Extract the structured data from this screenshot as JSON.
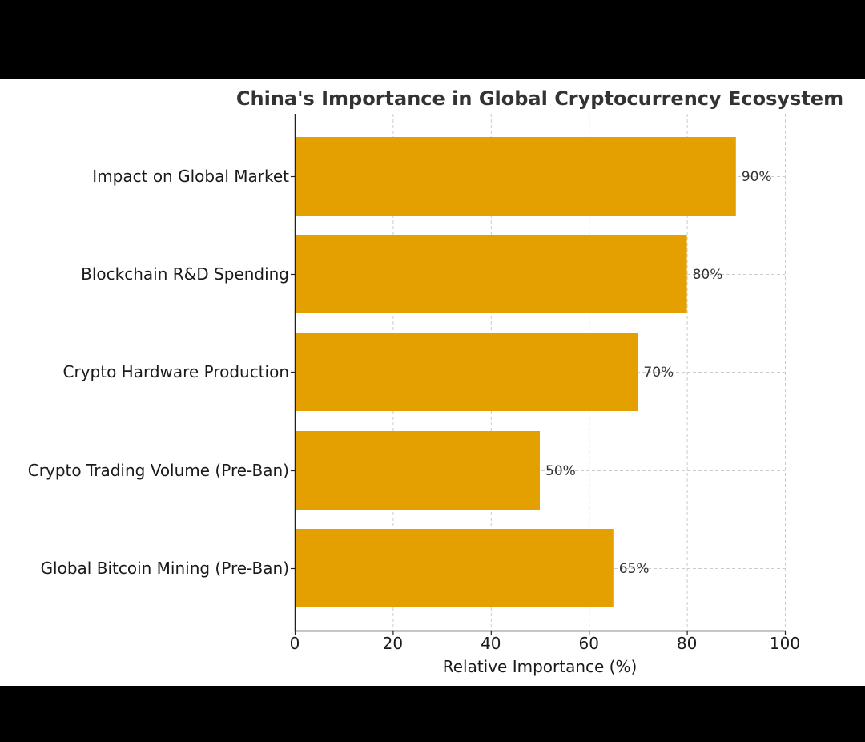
{
  "chart_data": {
    "type": "bar",
    "orientation": "horizontal",
    "title": "China's Importance in Global Cryptocurrency Ecosystem",
    "xlabel": "Relative Importance (%)",
    "ylabel": "",
    "categories": [
      "Impact on Global Market",
      "Blockchain R&D Spending",
      "Crypto Hardware Production",
      "Crypto Trading Volume (Pre-Ban)",
      "Global Bitcoin Mining (Pre-Ban)"
    ],
    "values": [
      90,
      80,
      70,
      50,
      65
    ],
    "data_labels": [
      "90%",
      "80%",
      "70%",
      "50%",
      "65%"
    ],
    "xlim": [
      0,
      100
    ],
    "xticks": [
      0,
      20,
      40,
      60,
      80,
      100
    ],
    "xtick_labels": [
      "0",
      "20",
      "40",
      "60",
      "80",
      "100"
    ],
    "grid": true,
    "grid_style": "dashed",
    "bar_color": "#E3A000"
  }
}
